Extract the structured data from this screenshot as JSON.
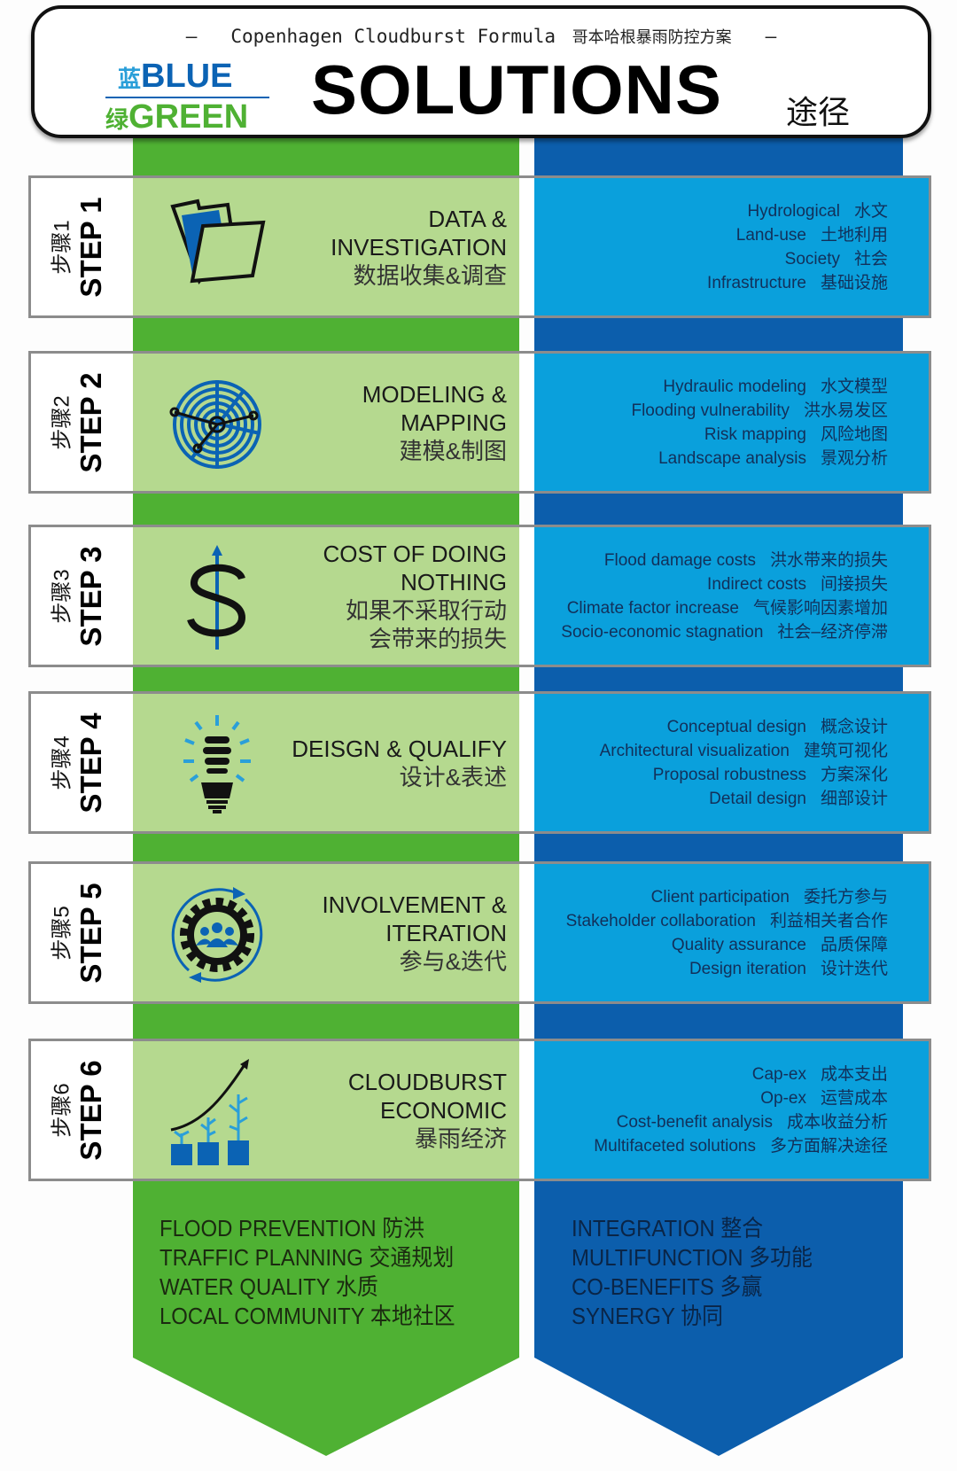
{
  "header": {
    "subtitle_en": "Copenhagen Cloudburst Formula",
    "subtitle_zh": "哥本哈根暴雨防控方案",
    "dash": "–",
    "logo_blue_zh": "蓝",
    "logo_blue": "BLUE",
    "logo_green_zh": "绿",
    "logo_green": "GREEN",
    "title": "SOLUTIONS",
    "title_zh": "途径"
  },
  "colors": {
    "green_dark": "#4fb133",
    "green_light": "#b5d98f",
    "blue_dark": "#0c5eac",
    "blue_light": "#0aa0dc"
  },
  "steps": [
    {
      "step": "STEP 1",
      "step_zh": "步骤1",
      "icon": "folder-icon",
      "title_lines": [
        "DATA &",
        "INVESTIGATION"
      ],
      "title_zh": "数据收集&调查",
      "items": [
        {
          "en": "Hydrological",
          "zh": "水文"
        },
        {
          "en": "Land-use",
          "zh": "土地利用"
        },
        {
          "en": "Society",
          "zh": "社会"
        },
        {
          "en": "Infrastructure",
          "zh": "基础设施"
        }
      ]
    },
    {
      "step": "STEP 2",
      "step_zh": "步骤2",
      "icon": "radar-map-icon",
      "title_lines": [
        "MODELING &",
        "MAPPING"
      ],
      "title_zh": "建模&制图",
      "items": [
        {
          "en": "Hydraulic modeling",
          "zh": "水文模型"
        },
        {
          "en": "Flooding vulnerability",
          "zh": "洪水易发区"
        },
        {
          "en": "Risk mapping",
          "zh": "风险地图"
        },
        {
          "en": "Landscape analysis",
          "zh": "景观分析"
        }
      ]
    },
    {
      "step": "STEP 3",
      "step_zh": "步骤3",
      "icon": "dollar-icon",
      "title_lines": [
        "COST OF DOING",
        "NOTHING"
      ],
      "title_zh": "如果不采取行动\n会带来的损失",
      "items": [
        {
          "en": "Flood damage costs",
          "zh": "洪水带来的损失"
        },
        {
          "en": "Indirect costs",
          "zh": "间接损失"
        },
        {
          "en": "Climate factor increase",
          "zh": "气候影响因素增加"
        },
        {
          "en": "Socio-economic stagnation",
          "zh": "社会–经济停滞"
        }
      ]
    },
    {
      "step": "STEP 4",
      "step_zh": "步骤4",
      "icon": "lightbulb-icon",
      "title_lines": [
        "DEISGN & QUALIFY"
      ],
      "title_zh": "设计&表述",
      "items": [
        {
          "en": "Conceptual design",
          "zh": "概念设计"
        },
        {
          "en": "Architectural visualization",
          "zh": "建筑可视化"
        },
        {
          "en": "Proposal robustness",
          "zh": "方案深化"
        },
        {
          "en": "Detail design",
          "zh": "细部设计"
        }
      ]
    },
    {
      "step": "STEP 5",
      "step_zh": "步骤5",
      "icon": "gear-people-cycle-icon",
      "title_lines": [
        "INVOLVEMENT &",
        "ITERATION"
      ],
      "title_zh": "参与&迭代",
      "items": [
        {
          "en": "Client participation",
          "zh": "委托方参与"
        },
        {
          "en": "Stakeholder collaboration",
          "zh": "利益相关者合作"
        },
        {
          "en": "Quality assurance",
          "zh": "品质保障"
        },
        {
          "en": "Design iteration",
          "zh": "设计迭代"
        }
      ]
    },
    {
      "step": "STEP 6",
      "step_zh": "步骤6",
      "icon": "growth-plants-icon",
      "title_lines": [
        "CLOUDBURST",
        "ECONOMIC"
      ],
      "title_zh": "暴雨经济",
      "items": [
        {
          "en": "Cap-ex",
          "zh": "成本支出"
        },
        {
          "en": "Op-ex",
          "zh": "运营成本"
        },
        {
          "en": "Cost-benefit analysis",
          "zh": "成本收益分析"
        },
        {
          "en": "Multifaceted solutions",
          "zh": "多方面解决途径"
        }
      ]
    }
  ],
  "green_outcomes": [
    "FLOOD PREVENTION 防洪",
    "TRAFFIC PLANNING 交通规划",
    "WATER QUALITY 水质",
    "LOCAL COMMUNITY 本地社区"
  ],
  "blue_outcomes": [
    "INTEGRATION 整合",
    "MULTIFUNCTION 多功能",
    "CO-BENEFITS 多赢",
    "SYNERGY 协同"
  ]
}
